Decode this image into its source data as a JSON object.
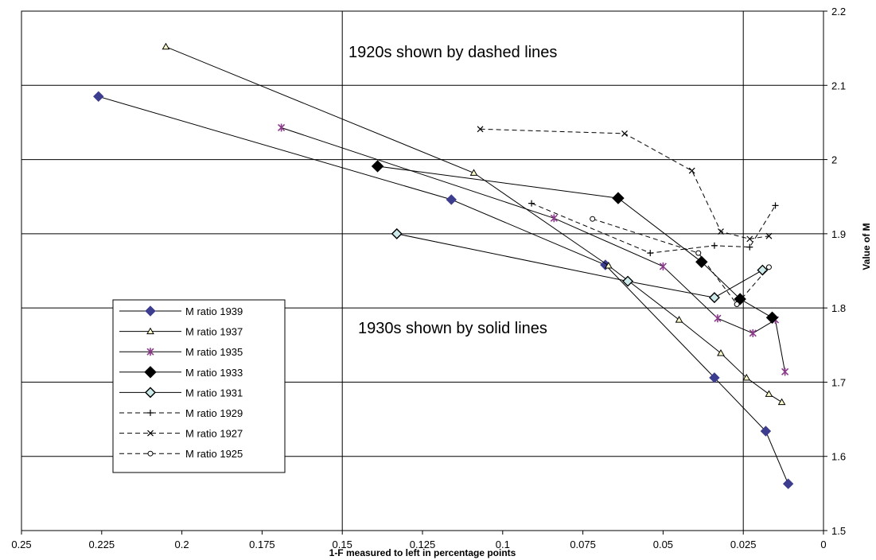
{
  "chart_data": {
    "type": "line",
    "title": "",
    "xlabel": "1-F measured to left in percentage points",
    "ylabel": "Value of M",
    "xlim": [
      0.25,
      0
    ],
    "ylim": [
      1.5,
      2.2
    ],
    "x_reversed": true,
    "x_ticks": [
      "0.25",
      "0.225",
      "0.2",
      "0.175",
      "0.15",
      "0.125",
      "0.1",
      "0.075",
      "0.05",
      "0.025",
      "0"
    ],
    "y_ticks": [
      "1.5",
      "1.6",
      "1.7",
      "1.8",
      "1.9",
      "2",
      "2.1",
      "2.2"
    ],
    "grid": "horizontal gridlines plus vertical reference lines at x = 0.15 and x = 0.025",
    "legend_position": "lower-left inside plot",
    "annotations": [
      "1920s shown by dashed lines",
      "1930s shown by solid lines"
    ],
    "series": [
      {
        "name": "M ratio 1939",
        "style": "solid",
        "marker": "diamond-filled",
        "color": "#3d3d8f",
        "x": [
          0.226,
          0.116,
          0.068,
          0.034,
          0.018,
          0.011
        ],
        "y": [
          2.085,
          1.946,
          1.858,
          1.706,
          1.634,
          1.563
        ]
      },
      {
        "name": "M ratio 1937",
        "style": "solid",
        "marker": "triangle-open",
        "color": "#000000",
        "x": [
          0.205,
          0.109,
          0.067,
          0.045,
          0.032,
          0.024,
          0.017,
          0.013
        ],
        "y": [
          2.152,
          1.982,
          1.857,
          1.784,
          1.739,
          1.706,
          1.684,
          1.673
        ]
      },
      {
        "name": "M ratio 1935",
        "style": "solid",
        "marker": "star",
        "color": "#8b3a8b",
        "x": [
          0.169,
          0.084,
          0.05,
          0.033,
          0.022,
          0.015,
          0.012
        ],
        "y": [
          2.043,
          1.921,
          1.856,
          1.786,
          1.766,
          1.784,
          1.714
        ]
      },
      {
        "name": "M ratio 1933",
        "style": "solid",
        "marker": "diamond-black",
        "color": "#000000",
        "x": [
          0.139,
          0.064,
          0.038,
          0.026,
          0.016
        ],
        "y": [
          1.991,
          1.948,
          1.862,
          1.812,
          1.787
        ]
      },
      {
        "name": "M ratio 1931",
        "style": "solid",
        "marker": "diamond-open",
        "color": "#000000",
        "x": [
          0.133,
          0.061,
          0.034,
          0.019
        ],
        "y": [
          1.9,
          1.836,
          1.814,
          1.851
        ]
      },
      {
        "name": "M ratio 1929",
        "style": "dashed",
        "marker": "plus",
        "color": "#000000",
        "x": [
          0.091,
          0.054,
          0.034,
          0.023,
          0.015
        ],
        "y": [
          1.941,
          1.874,
          1.884,
          1.882,
          1.938
        ]
      },
      {
        "name": "M ratio 1927",
        "style": "dashed",
        "marker": "x",
        "color": "#000000",
        "x": [
          0.107,
          0.062,
          0.041,
          0.032,
          0.023,
          0.017
        ],
        "y": [
          2.041,
          2.035,
          1.985,
          1.903,
          1.893,
          1.897
        ]
      },
      {
        "name": "M ratio 1925",
        "style": "dashed",
        "marker": "circle",
        "color": "#000000",
        "x": [
          0.072,
          0.039,
          0.027,
          0.017
        ],
        "y": [
          1.92,
          1.874,
          1.805,
          1.855
        ]
      }
    ]
  }
}
